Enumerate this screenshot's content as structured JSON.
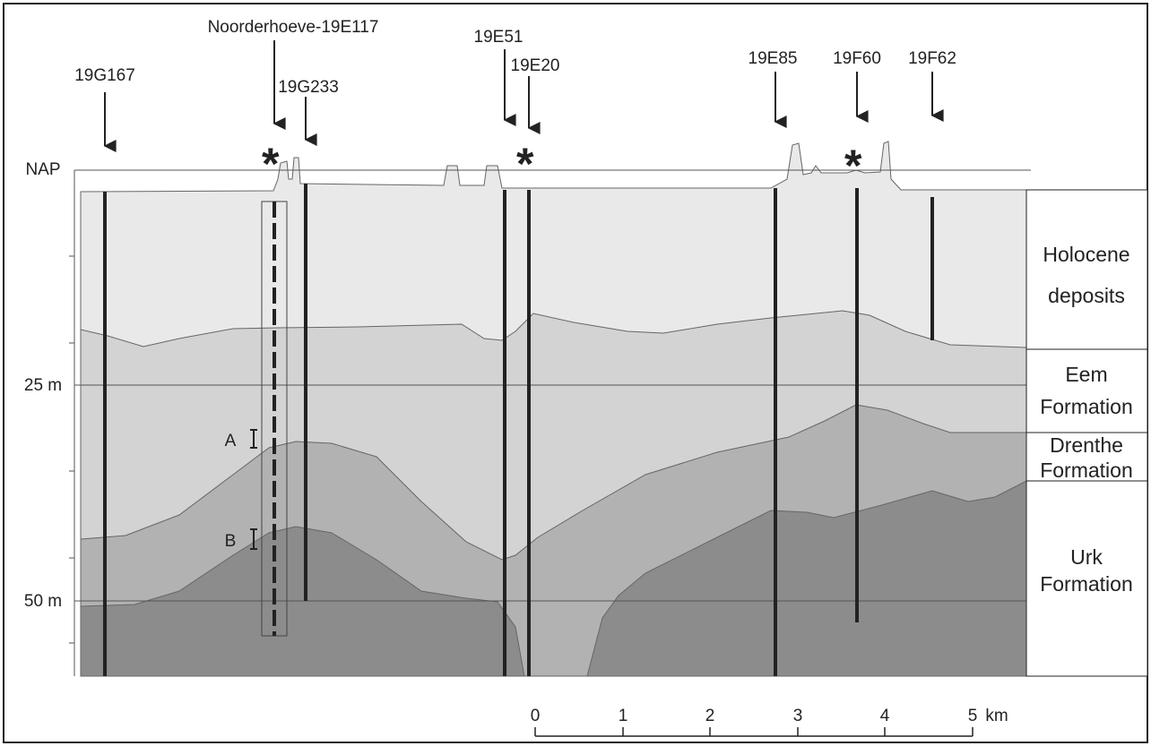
{
  "depth_labels": [
    "NAP",
    "25 m",
    "50 m"
  ],
  "boreholes": [
    "19G167",
    "Noorderhoeve-19E117",
    "19G233",
    "19E51",
    "19E20",
    "19E85",
    "19F60",
    "19F62"
  ],
  "units": [
    [
      "Holocene",
      "deposits"
    ],
    [
      "Eem",
      "Formation"
    ],
    [
      "Drenthe",
      "Formation"
    ],
    [
      "Urk",
      "Formation"
    ]
  ],
  "markers": [
    "A",
    "B"
  ],
  "scale": {
    "ticks": [
      "0",
      "1",
      "2",
      "3",
      "4",
      "5"
    ],
    "unit": "km"
  }
}
